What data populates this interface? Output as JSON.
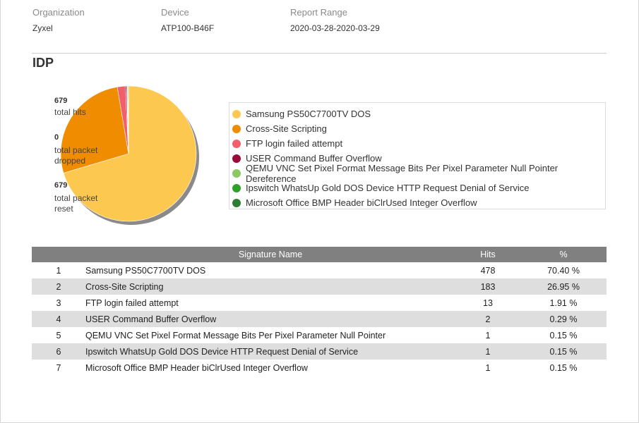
{
  "header": {
    "organization_label": "Organization",
    "organization_value": "Zyxel",
    "device_label": "Device",
    "device_value": "ATP100-B46F",
    "range_label": "Report Range",
    "range_value": "2020-03-28-2020-03-29"
  },
  "section": {
    "title": "IDP"
  },
  "stats": {
    "total_hits_num": "679",
    "total_hits_label": "total hits",
    "dropped_num": "0",
    "dropped_label_1": "total packet",
    "dropped_label_2": "dropped",
    "reset_num": "679",
    "reset_label_1": "total packet",
    "reset_label_2": "reset"
  },
  "legend": [
    {
      "label": "Samsung PS50C7700TV DOS",
      "color": "#fdc84f"
    },
    {
      "label": "Cross-Site Scripting",
      "color": "#f08c00"
    },
    {
      "label": "FTP login failed attempt",
      "color": "#f25f6b"
    },
    {
      "label": "USER Command Buffer Overflow",
      "color": "#9a0a3c"
    },
    {
      "label": "QEMU VNC Set Pixel Format Message Bits Per Pixel Parameter Null Pointer Dereference",
      "color": "#8cc864"
    },
    {
      "label": "Ipswitch WhatsUp Gold DOS Device HTTP Request Denial of Service",
      "color": "#2fa02a"
    },
    {
      "label": "Microsoft Office BMP Header biClrUsed Integer Overflow",
      "color": "#2e7d32"
    }
  ],
  "chart_data": {
    "type": "pie",
    "categories": [
      "Samsung PS50C7700TV DOS",
      "Cross-Site Scripting",
      "FTP login failed attempt",
      "USER Command Buffer Overflow",
      "QEMU VNC Set Pixel Format Message Bits Per Pixel Parameter Null Pointer Dereference",
      "Ipswitch WhatsUp Gold DOS Device HTTP Request Denial of Service",
      "Microsoft Office BMP Header biClrUsed Integer Overflow"
    ],
    "values": [
      478,
      183,
      13,
      2,
      1,
      1,
      1
    ],
    "colors": [
      "#fdc84f",
      "#f08c00",
      "#f25f6b",
      "#9a0a3c",
      "#8cc864",
      "#2fa02a",
      "#2e7d32"
    ]
  },
  "table": {
    "headers": {
      "num": "",
      "name": "Signature Name",
      "hits": "Hits",
      "pct": "%"
    },
    "rows": [
      {
        "num": "1",
        "name": "Samsung PS50C7700TV DOS",
        "hits": "478",
        "pct": "70.40 %"
      },
      {
        "num": "2",
        "name": "Cross-Site Scripting",
        "hits": "183",
        "pct": "26.95 %"
      },
      {
        "num": "3",
        "name": "FTP login failed attempt",
        "hits": "13",
        "pct": "1.91 %"
      },
      {
        "num": "4",
        "name": "USER Command Buffer Overflow",
        "hits": "2",
        "pct": "0.29 %"
      },
      {
        "num": "5",
        "name": "QEMU VNC Set Pixel Format Message Bits Per Pixel Parameter Null Pointer",
        "hits": "1",
        "pct": "0.15 %"
      },
      {
        "num": "6",
        "name": "Ipswitch WhatsUp Gold DOS Device HTTP Request Denial of Service",
        "hits": "1",
        "pct": "0.15 %"
      },
      {
        "num": "7",
        "name": "Microsoft Office BMP Header biClrUsed Integer Overflow",
        "hits": "1",
        "pct": "0.15 %"
      }
    ]
  }
}
